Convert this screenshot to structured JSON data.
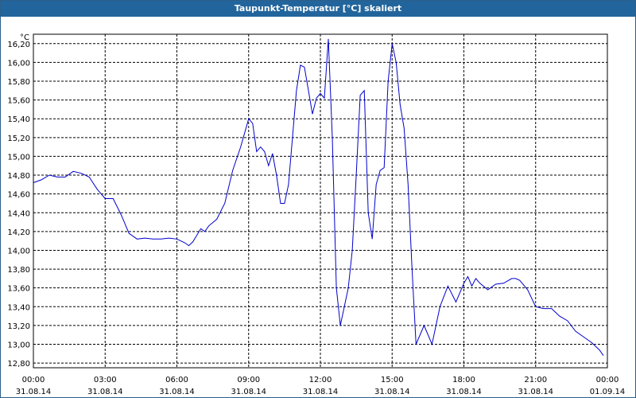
{
  "window": {
    "title": "Taupunkt-Temperatur [°C] skaliert"
  },
  "chart_data": {
    "type": "line",
    "title": "Taupunkt-Temperatur [°C] skaliert",
    "y_unit_label": "°C",
    "ylim": [
      12.75,
      16.3
    ],
    "x_tick_times": [
      "00:00",
      "03:00",
      "06:00",
      "09:00",
      "12:00",
      "15:00",
      "18:00",
      "21:00",
      "00:00"
    ],
    "x_tick_dates": [
      "31.08.14",
      "31.08.14",
      "31.08.14",
      "31.08.14",
      "31.08.14",
      "31.08.14",
      "31.08.14",
      "31.08.14",
      "01.09.14"
    ],
    "y_ticks": [
      "12,80",
      "13,00",
      "13,20",
      "13,40",
      "13,60",
      "13,80",
      "14,00",
      "14,20",
      "14,40",
      "14,60",
      "14,80",
      "15,00",
      "15,20",
      "15,40",
      "15,60",
      "15,80",
      "16,00",
      "16,20"
    ],
    "grid": true,
    "line_color": "#0000cc",
    "series": [
      {
        "x": [
          "31.08.14 00:00",
          "31.08.14 00:20",
          "31.08.14 00:40",
          "31.08.14 01:00",
          "31.08.14 01:20",
          "31.08.14 01:40",
          "31.08.14 02:00",
          "31.08.14 02:20",
          "31.08.14 02:40",
          "31.08.14 03:00",
          "31.08.14 03:20",
          "31.08.14 03:40",
          "31.08.14 04:00",
          "31.08.14 04:20",
          "31.08.14 04:40",
          "31.08.14 05:00",
          "31.08.14 05:20",
          "31.08.14 05:40",
          "31.08.14 06:00",
          "31.08.14 06:20",
          "31.08.14 06:30",
          "31.08.14 06:40",
          "31.08.14 07:00",
          "31.08.14 07:10",
          "31.08.14 07:20",
          "31.08.14 07:40",
          "31.08.14 08:00",
          "31.08.14 08:20",
          "31.08.14 08:40",
          "31.08.14 09:00",
          "31.08.14 09:10",
          "31.08.14 09:20",
          "31.08.14 09:30",
          "31.08.14 09:40",
          "31.08.14 09:50",
          "31.08.14 10:00",
          "31.08.14 10:10",
          "31.08.14 10:20",
          "31.08.14 10:30",
          "31.08.14 10:40",
          "31.08.14 10:50",
          "31.08.14 11:00",
          "31.08.14 11:10",
          "31.08.14 11:20",
          "31.08.14 11:30",
          "31.08.14 11:40",
          "31.08.14 11:50",
          "31.08.14 12:00",
          "31.08.14 12:10",
          "31.08.14 12:20",
          "31.08.14 12:30",
          "31.08.14 12:40",
          "31.08.14 12:50",
          "31.08.14 13:00",
          "31.08.14 13:10",
          "31.08.14 13:20",
          "31.08.14 13:30",
          "31.08.14 13:40",
          "31.08.14 13:50",
          "31.08.14 14:00",
          "31.08.14 14:10",
          "31.08.14 14:20",
          "31.08.14 14:30",
          "31.08.14 14:40",
          "31.08.14 14:50",
          "31.08.14 15:00",
          "31.08.14 15:10",
          "31.08.14 15:20",
          "31.08.14 15:30",
          "31.08.14 15:40",
          "31.08.14 15:50",
          "31.08.14 16:00",
          "31.08.14 16:20",
          "31.08.14 16:40",
          "31.08.14 17:00",
          "31.08.14 17:20",
          "31.08.14 17:40",
          "31.08.14 18:00",
          "31.08.14 18:10",
          "31.08.14 18:20",
          "31.08.14 18:30",
          "31.08.14 18:40",
          "31.08.14 19:00",
          "31.08.14 19:20",
          "31.08.14 19:40",
          "31.08.14 20:00",
          "31.08.14 20:10",
          "31.08.14 20:20",
          "31.08.14 20:40",
          "31.08.14 21:00",
          "31.08.14 21:20",
          "31.08.14 21:40",
          "31.08.14 22:00",
          "31.08.14 22:20",
          "31.08.14 22:40",
          "31.08.14 23:00",
          "31.08.14 23:20",
          "31.08.14 23:40",
          "31.08.14 23:50"
        ],
        "values": [
          14.72,
          14.75,
          14.8,
          14.78,
          14.78,
          14.84,
          14.82,
          14.78,
          14.65,
          14.55,
          14.55,
          14.38,
          14.18,
          14.12,
          14.13,
          14.12,
          14.12,
          14.13,
          14.12,
          14.08,
          14.05,
          14.09,
          14.23,
          14.2,
          14.26,
          14.33,
          14.5,
          14.85,
          15.1,
          15.4,
          15.35,
          15.05,
          15.1,
          15.05,
          14.9,
          15.03,
          14.8,
          14.5,
          14.5,
          14.7,
          15.2,
          15.7,
          15.97,
          15.95,
          15.7,
          15.45,
          15.62,
          15.67,
          15.62,
          16.25,
          15.2,
          13.6,
          13.2,
          13.4,
          13.6,
          14.0,
          14.8,
          15.65,
          15.7,
          14.4,
          14.12,
          14.7,
          14.85,
          14.88,
          15.8,
          16.2,
          16.0,
          15.55,
          15.3,
          14.7,
          13.8,
          13.0,
          13.2,
          13.0,
          13.4,
          13.62,
          13.45,
          13.65,
          13.72,
          13.62,
          13.7,
          13.65,
          13.58,
          13.64,
          13.65,
          13.7,
          13.7,
          13.68,
          13.58,
          13.4,
          13.38,
          13.38,
          13.3,
          13.25,
          13.14,
          13.08,
          13.02,
          12.94,
          12.88
        ]
      }
    ]
  }
}
